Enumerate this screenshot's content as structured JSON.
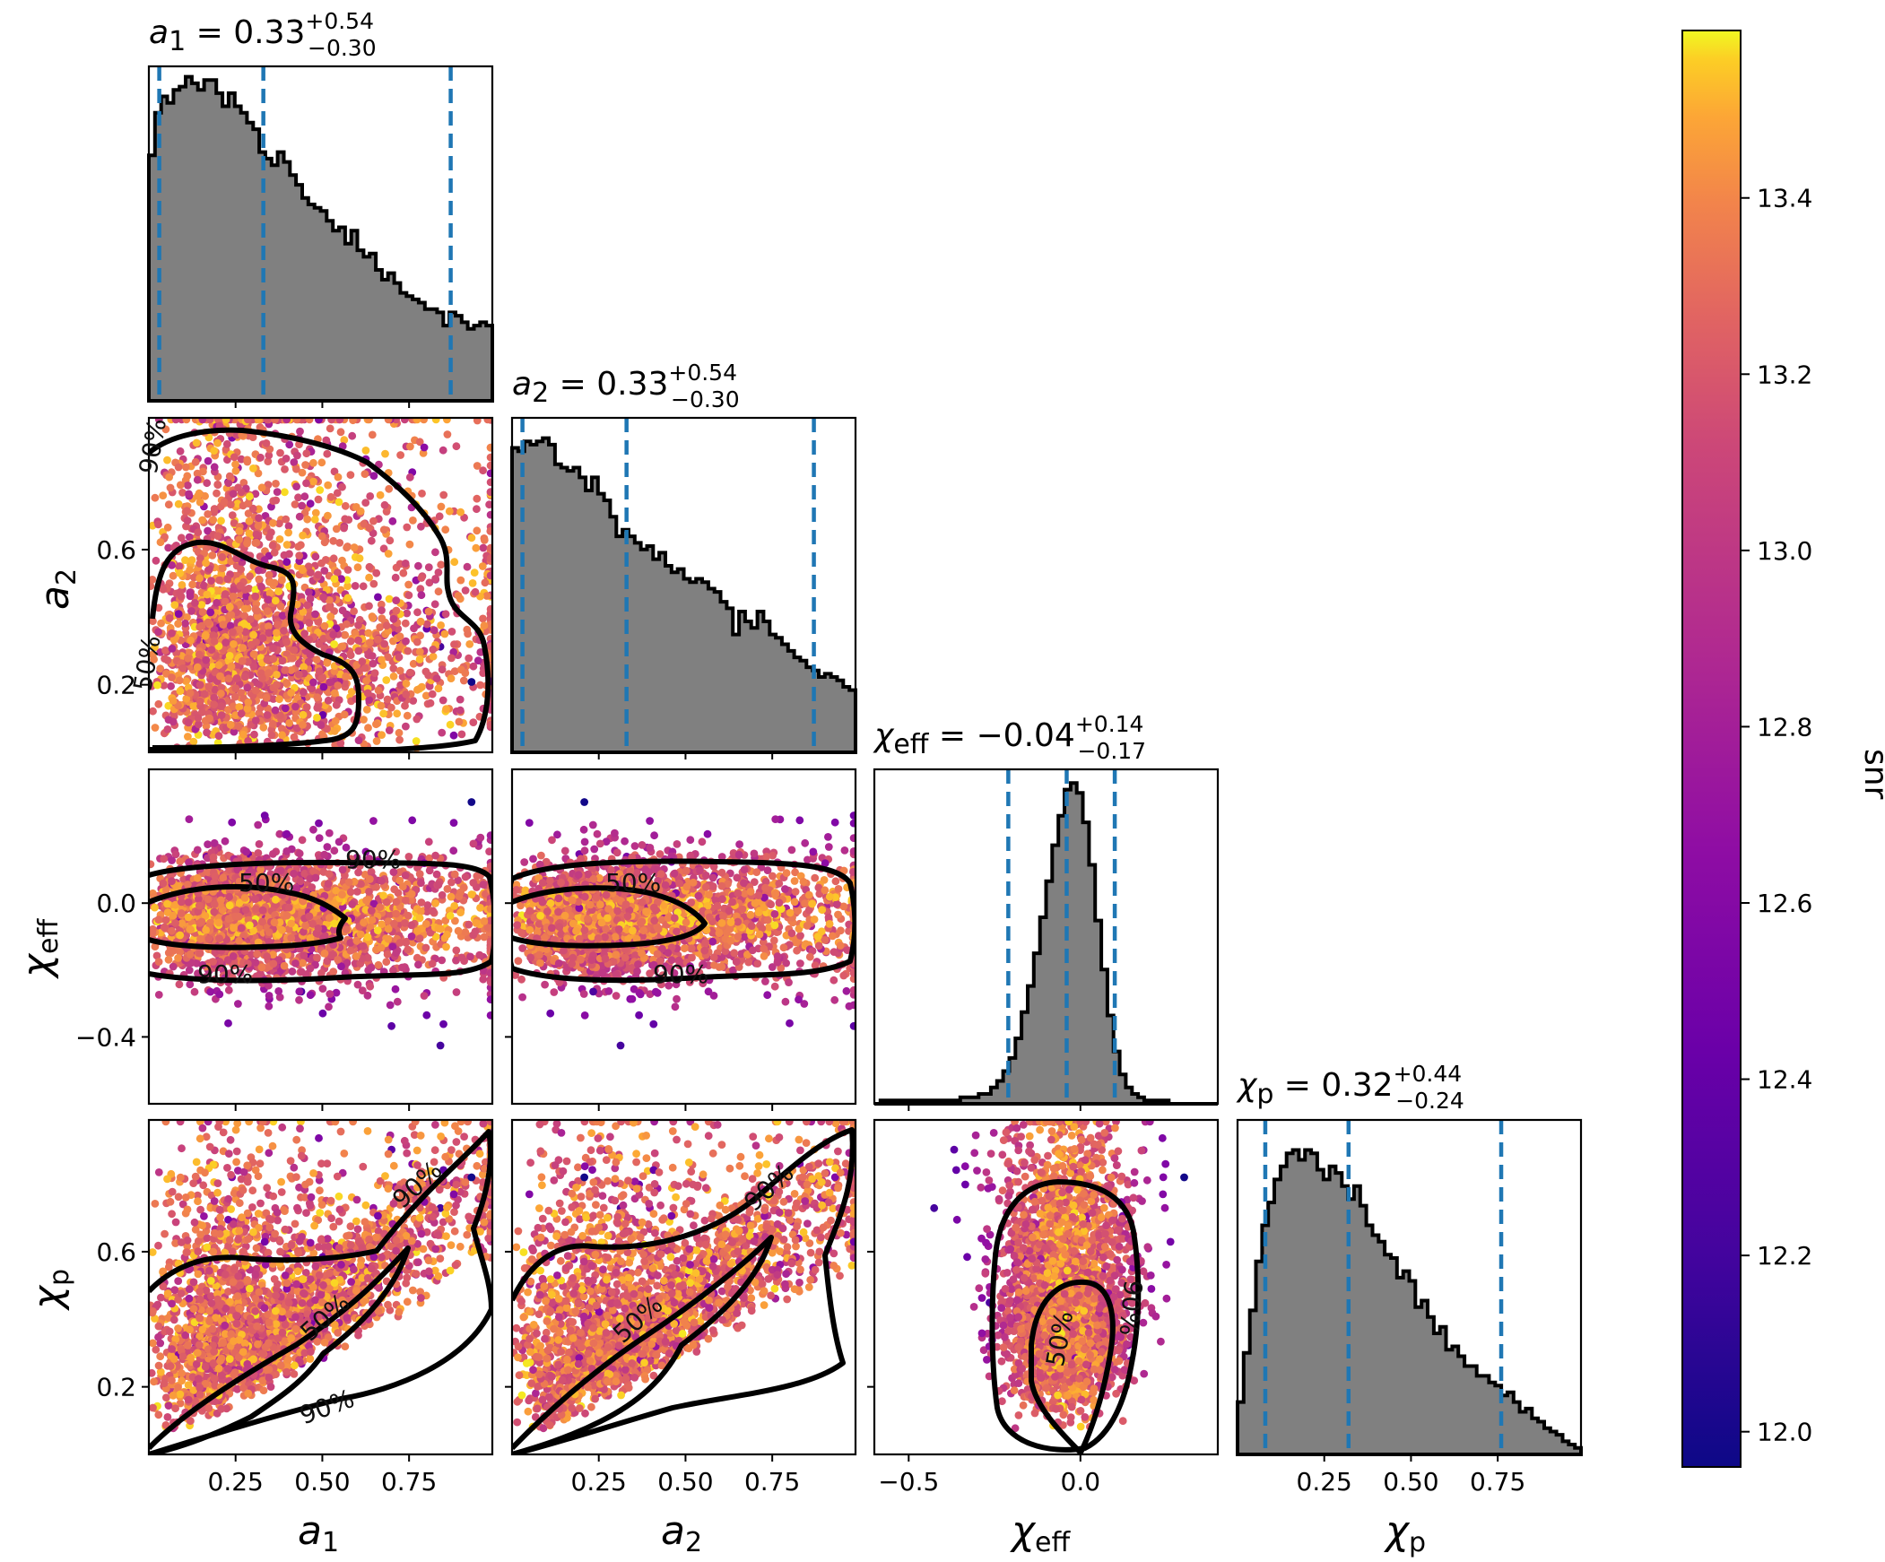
{
  "chart_data": {
    "type": "corner",
    "parameters": [
      {
        "id": "a1",
        "symbol": "a",
        "subscript": "1",
        "median": "0.33",
        "upper": "+0.54",
        "lower": "−0.30",
        "range": [
          0.0,
          0.99
        ],
        "quantiles": [
          0.03,
          0.33,
          0.87
        ],
        "hist": [
          0.75,
          0.88,
          0.93,
          0.91,
          0.95,
          0.96,
          0.99,
          0.97,
          0.95,
          0.98,
          0.98,
          0.94,
          0.9,
          0.94,
          0.9,
          0.88,
          0.85,
          0.83,
          0.76,
          0.74,
          0.72,
          0.76,
          0.73,
          0.69,
          0.66,
          0.62,
          0.6,
          0.59,
          0.58,
          0.55,
          0.52,
          0.53,
          0.48,
          0.52,
          0.46,
          0.44,
          0.45,
          0.4,
          0.37,
          0.39,
          0.36,
          0.33,
          0.32,
          0.31,
          0.3,
          0.28,
          0.28,
          0.27,
          0.23,
          0.27,
          0.26,
          0.24,
          0.22,
          0.23,
          0.24,
          0.23
        ]
      },
      {
        "id": "a2",
        "symbol": "a",
        "subscript": "2",
        "median": "0.33",
        "upper": "+0.54",
        "lower": "−0.30",
        "range": [
          0.0,
          0.99
        ],
        "quantiles": [
          0.03,
          0.33,
          0.87
        ],
        "hist": [
          0.93,
          0.92,
          0.95,
          0.94,
          0.95,
          0.96,
          0.94,
          0.88,
          0.87,
          0.86,
          0.87,
          0.84,
          0.8,
          0.84,
          0.79,
          0.77,
          0.72,
          0.66,
          0.68,
          0.66,
          0.64,
          0.62,
          0.63,
          0.59,
          0.61,
          0.57,
          0.55,
          0.56,
          0.53,
          0.52,
          0.53,
          0.52,
          0.5,
          0.49,
          0.46,
          0.44,
          0.36,
          0.43,
          0.4,
          0.38,
          0.43,
          0.4,
          0.36,
          0.35,
          0.33,
          0.31,
          0.29,
          0.28,
          0.26,
          0.25,
          0.23,
          0.24,
          0.23,
          0.22,
          0.2,
          0.19
        ]
      },
      {
        "id": "chi_eff",
        "symbol": "χ",
        "subscript": "eff",
        "median": "−0.04",
        "upper": "+0.14",
        "lower": "−0.17",
        "range": [
          -0.6,
          0.4
        ],
        "quantiles": [
          -0.21,
          -0.04,
          0.1
        ],
        "hist": [
          0.0,
          0.01,
          0.01,
          0.01,
          0.01,
          0.01,
          0.01,
          0.01,
          0.01,
          0.01,
          0.01,
          0.01,
          0.01,
          0.01,
          0.02,
          0.02,
          0.02,
          0.03,
          0.03,
          0.05,
          0.07,
          0.1,
          0.14,
          0.2,
          0.28,
          0.36,
          0.46,
          0.57,
          0.68,
          0.79,
          0.88,
          0.96,
          0.98,
          0.95,
          0.86,
          0.73,
          0.56,
          0.41,
          0.27,
          0.16,
          0.09,
          0.05,
          0.03,
          0.02,
          0.01,
          0.01,
          0.01,
          0.01,
          0.0,
          0.0,
          0.0,
          0.0,
          0.0,
          0.0,
          0.0,
          0.0
        ]
      },
      {
        "id": "chi_p",
        "symbol": "χ",
        "subscript": "p",
        "median": "0.32",
        "upper": "+0.44",
        "lower": "−0.24",
        "range": [
          0.0,
          0.99
        ],
        "quantiles": [
          0.08,
          0.32,
          0.76
        ],
        "hist": [
          0.16,
          0.31,
          0.44,
          0.59,
          0.7,
          0.77,
          0.84,
          0.88,
          0.92,
          0.93,
          0.9,
          0.93,
          0.92,
          0.87,
          0.84,
          0.88,
          0.86,
          0.82,
          0.78,
          0.82,
          0.76,
          0.7,
          0.67,
          0.65,
          0.61,
          0.6,
          0.54,
          0.56,
          0.53,
          0.45,
          0.47,
          0.42,
          0.37,
          0.39,
          0.32,
          0.33,
          0.3,
          0.27,
          0.27,
          0.24,
          0.24,
          0.22,
          0.21,
          0.18,
          0.19,
          0.16,
          0.13,
          0.14,
          0.11,
          0.1,
          0.08,
          0.07,
          0.06,
          0.04,
          0.03,
          0.02
        ]
      }
    ],
    "ticks": {
      "a1": [
        "0.25",
        "0.50",
        "0.75"
      ],
      "a2": [
        "0.25",
        "0.50",
        "0.75"
      ],
      "chi_eff_x": [
        "−0.5",
        "0.0"
      ],
      "chi_eff_y": [
        "0.0",
        "−0.4"
      ],
      "chi_p": [
        "0.25",
        "0.50",
        "0.75"
      ],
      "a2_y": [
        "0.6",
        "0.2"
      ],
      "chi_p_y": [
        "0.6",
        "0.2"
      ]
    },
    "contour_levels": [
      "50%",
      "90%"
    ],
    "colorbar": {
      "label": "snr",
      "colormap": "plasma",
      "range": [
        11.96,
        13.59
      ],
      "ticks": [
        "13.4",
        "13.2",
        "13.0",
        "12.8",
        "12.6",
        "12.4",
        "12.2",
        "12.0"
      ]
    },
    "colors": {
      "histogram": "#808080",
      "quantile_line": "#1f77b4",
      "contour": "#000000"
    }
  }
}
